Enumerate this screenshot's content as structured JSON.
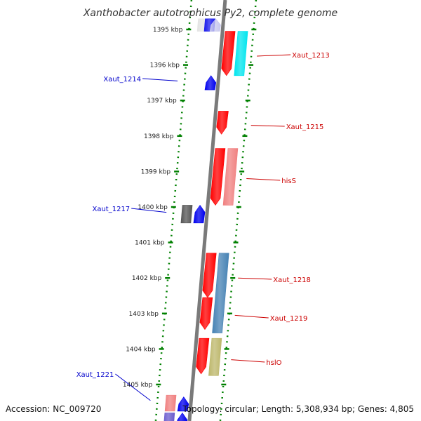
{
  "title": "Xanthobacter autotrophicus Py2, complete genome",
  "footer": {
    "accession": "Accession: NC_009720",
    "topology": "Topology: circular; Length: 5,308,934 bp; Genes: 4,805"
  },
  "colors": {
    "forward_label": "#cc0000",
    "reverse_label": "#0000cc",
    "tick": "#008000",
    "backbone": "#7a7a7a"
  },
  "ticks": [
    {
      "kbp": 1395,
      "label": "1395 kbp"
    },
    {
      "kbp": 1396,
      "label": "1396 kbp"
    },
    {
      "kbp": 1397,
      "label": "1397 kbp"
    },
    {
      "kbp": 1398,
      "label": "1398 kbp"
    },
    {
      "kbp": 1399,
      "label": "1399 kbp"
    },
    {
      "kbp": 1400,
      "label": "1400 kbp"
    },
    {
      "kbp": 1401,
      "label": "1401 kbp"
    },
    {
      "kbp": 1402,
      "label": "1402 kbp"
    },
    {
      "kbp": 1403,
      "label": "1403 kbp"
    },
    {
      "kbp": 1404,
      "label": "1404 kbp"
    },
    {
      "kbp": 1405,
      "label": "1405 kbp"
    }
  ],
  "features": [
    {
      "strand": "reverse",
      "track": 0,
      "start": 1394.7,
      "end": 1395.05,
      "color": "#e4e4e4",
      "arrow": false
    },
    {
      "strand": "reverse",
      "track": 0.55,
      "start": 1394.7,
      "end": 1395.05,
      "color": "#1a1aee",
      "arrow": false
    },
    {
      "strand": "reverse",
      "track": 1,
      "start": 1394.7,
      "end": 1395.05,
      "color": "#c8c8ee",
      "arrow": true
    },
    {
      "strand": "reverse",
      "track": 1,
      "start": 1396.3,
      "end": 1396.7,
      "color": "#0000ee",
      "arrow": true
    },
    {
      "strand": "reverse",
      "track": 0,
      "start": 1399.95,
      "end": 1400.45,
      "color": "#555555",
      "arrow": false
    },
    {
      "strand": "reverse",
      "track": 1,
      "start": 1399.95,
      "end": 1400.45,
      "color": "#0000ee",
      "arrow": true
    },
    {
      "strand": "reverse",
      "track": 0,
      "start": 1405.3,
      "end": 1405.75,
      "color": "#f08080",
      "arrow": false
    },
    {
      "strand": "reverse",
      "track": 1,
      "start": 1405.35,
      "end": 1405.75,
      "color": "#0000ee",
      "arrow": true
    },
    {
      "strand": "reverse",
      "track": 0,
      "start": 1405.8,
      "end": 1406.4,
      "color": "#6a5acd",
      "arrow": false
    },
    {
      "strand": "reverse",
      "track": 1,
      "start": 1405.8,
      "end": 1406.4,
      "color": "#0000ee",
      "arrow": true
    },
    {
      "strand": "forward",
      "track": 0,
      "start": 1395.05,
      "end": 1396.3,
      "color": "#ff0000",
      "arrow": true
    },
    {
      "strand": "forward",
      "track": 1,
      "start": 1395.05,
      "end": 1396.3,
      "color": "#00e5ee",
      "arrow": false
    },
    {
      "strand": "forward",
      "track": 0,
      "start": 1397.3,
      "end": 1397.95,
      "color": "#ff0000",
      "arrow": true
    },
    {
      "strand": "forward",
      "track": 0,
      "start": 1398.35,
      "end": 1399.95,
      "color": "#ff0000",
      "arrow": true
    },
    {
      "strand": "forward",
      "track": 1,
      "start": 1398.35,
      "end": 1399.95,
      "color": "#f08080",
      "arrow": false
    },
    {
      "strand": "forward",
      "track": 0,
      "start": 1401.3,
      "end": 1402.55,
      "color": "#ff0000",
      "arrow": true
    },
    {
      "strand": "forward",
      "track": 1,
      "start": 1401.3,
      "end": 1403.55,
      "color": "#4682b4",
      "arrow": false
    },
    {
      "strand": "forward",
      "track": 0,
      "start": 1402.55,
      "end": 1403.45,
      "color": "#ff0000",
      "arrow": true
    },
    {
      "strand": "forward",
      "track": 0,
      "start": 1403.7,
      "end": 1404.7,
      "color": "#ff0000",
      "arrow": true
    },
    {
      "strand": "forward",
      "track": 1,
      "start": 1403.7,
      "end": 1404.75,
      "color": "#bdb76b",
      "arrow": false
    }
  ],
  "labels": [
    {
      "text": "Xaut_1213",
      "strand": "forward",
      "kbp": 1395.75,
      "labelY": 78
    },
    {
      "text": "Xaut_1215",
      "strand": "forward",
      "kbp": 1397.7,
      "labelY": 180
    },
    {
      "text": "hisS",
      "strand": "forward",
      "kbp": 1399.2,
      "labelY": 257
    },
    {
      "text": "Xaut_1218",
      "strand": "forward",
      "kbp": 1402.0,
      "labelY": 398
    },
    {
      "text": "Xaut_1219",
      "strand": "forward",
      "kbp": 1403.05,
      "labelY": 453
    },
    {
      "text": "hslO",
      "strand": "forward",
      "kbp": 1404.3,
      "labelY": 516
    },
    {
      "text": "Xaut_1214",
      "strand": "reverse",
      "kbp": 1396.45,
      "labelY": 112
    },
    {
      "text": "Xaut_1217",
      "strand": "reverse",
      "kbp": 1400.15,
      "labelY": 297
    },
    {
      "text": "Xaut_1221",
      "strand": "reverse",
      "kbp": 1405.45,
      "labelY": 533
    }
  ]
}
